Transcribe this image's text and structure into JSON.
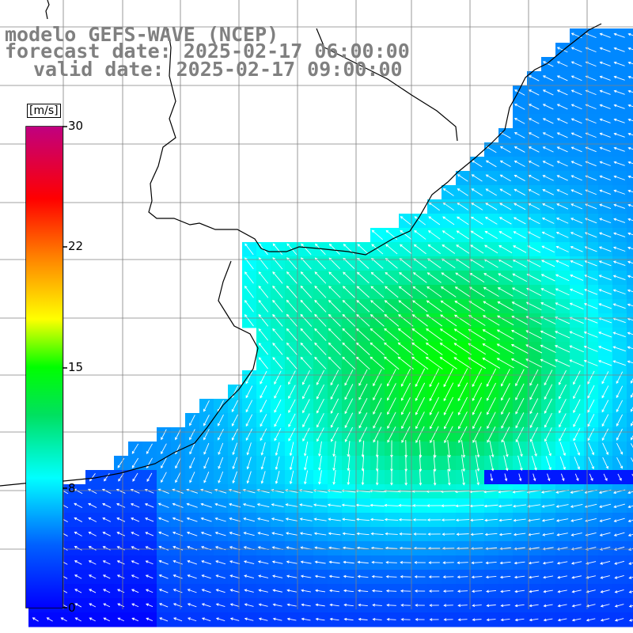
{
  "title": {
    "model": "modelo GEFS-WAVE (NCEP)",
    "forecast": "forecast date: 2025-02-17 06:00:00",
    "valid": "valid date: 2025-02-17 09:00:00"
  },
  "legend": {
    "unit": "[m/s]",
    "ticks": [
      "30",
      "22",
      "15",
      "8",
      "0"
    ],
    "min": 0,
    "max": 30,
    "colors": [
      "#0000ff",
      "#0080ff",
      "#00ffff",
      "#00ff00",
      "#ffff00",
      "#ff8000",
      "#ff0000",
      "#c00080"
    ]
  },
  "colors": {
    "land": "#ffffff",
    "coast": "#000000",
    "grid": "#808080",
    "arrows": "#ffffff",
    "title_text": "#808080"
  },
  "map": {
    "field": "wind speed with direction arrows",
    "grid_lines": true,
    "land_color": "white"
  }
}
